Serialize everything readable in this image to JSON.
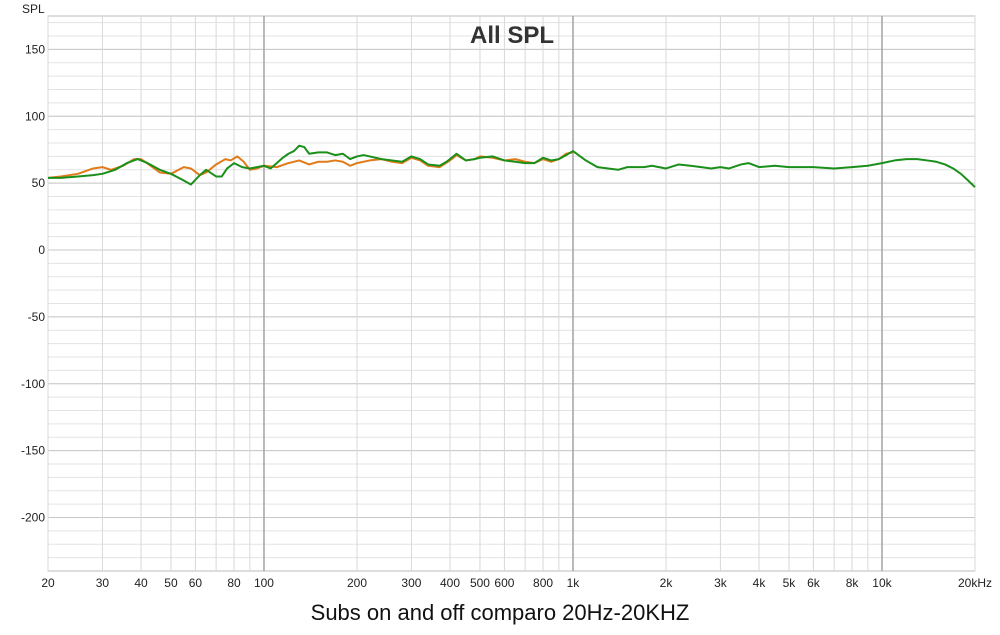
{
  "chart_data": {
    "type": "line",
    "title": "All SPL",
    "ylabel": "SPL",
    "xlabel": "",
    "x_scale": "log",
    "xlim": [
      20,
      20000
    ],
    "ylim": [
      -240,
      175
    ],
    "grid": true,
    "y_ticks": [
      150,
      100,
      50,
      0,
      -50,
      -100,
      -150,
      -200
    ],
    "x_ticks": [
      {
        "value": 20,
        "label": "20"
      },
      {
        "value": 30,
        "label": "30"
      },
      {
        "value": 40,
        "label": "40"
      },
      {
        "value": 50,
        "label": "50"
      },
      {
        "value": 60,
        "label": "60"
      },
      {
        "value": 80,
        "label": "80"
      },
      {
        "value": 100,
        "label": "100"
      },
      {
        "value": 200,
        "label": "200"
      },
      {
        "value": 300,
        "label": "300"
      },
      {
        "value": 400,
        "label": "400"
      },
      {
        "value": 500,
        "label": "500"
      },
      {
        "value": 600,
        "label": "600"
      },
      {
        "value": 800,
        "label": "800"
      },
      {
        "value": 1000,
        "label": "1k"
      },
      {
        "value": 2000,
        "label": "2k"
      },
      {
        "value": 3000,
        "label": "3k"
      },
      {
        "value": 4000,
        "label": "4k"
      },
      {
        "value": 5000,
        "label": "5k"
      },
      {
        "value": 6000,
        "label": "6k"
      },
      {
        "value": 8000,
        "label": "8k"
      },
      {
        "value": 10000,
        "label": "10k"
      },
      {
        "value": 20000,
        "label": "20kHz"
      }
    ],
    "series": [
      {
        "color": "#e07b1a",
        "points": [
          [
            20,
            54
          ],
          [
            22,
            55
          ],
          [
            25,
            57
          ],
          [
            28,
            61
          ],
          [
            30,
            62
          ],
          [
            32,
            60
          ],
          [
            35,
            63
          ],
          [
            38,
            68
          ],
          [
            40,
            68
          ],
          [
            43,
            63
          ],
          [
            46,
            58
          ],
          [
            50,
            57
          ],
          [
            55,
            62
          ],
          [
            58,
            61
          ],
          [
            62,
            56
          ],
          [
            65,
            58
          ],
          [
            70,
            64
          ],
          [
            75,
            68
          ],
          [
            78,
            67
          ],
          [
            82,
            70
          ],
          [
            86,
            66
          ],
          [
            90,
            60
          ],
          [
            95,
            61
          ],
          [
            100,
            63
          ],
          [
            110,
            62
          ],
          [
            120,
            65
          ],
          [
            130,
            67
          ],
          [
            140,
            64
          ],
          [
            150,
            66
          ],
          [
            160,
            66
          ],
          [
            170,
            67
          ],
          [
            180,
            66
          ],
          [
            190,
            63
          ],
          [
            200,
            65
          ],
          [
            220,
            67
          ],
          [
            240,
            68
          ],
          [
            260,
            66
          ],
          [
            280,
            65
          ],
          [
            300,
            69
          ],
          [
            320,
            67
          ],
          [
            340,
            63
          ],
          [
            370,
            62
          ],
          [
            400,
            67
          ],
          [
            420,
            71
          ],
          [
            450,
            67
          ],
          [
            480,
            68
          ],
          [
            500,
            70
          ],
          [
            550,
            69
          ],
          [
            600,
            67
          ],
          [
            650,
            68
          ],
          [
            700,
            66
          ],
          [
            750,
            65
          ],
          [
            800,
            68
          ],
          [
            850,
            66
          ],
          [
            900,
            68
          ],
          [
            950,
            72
          ],
          [
            1000,
            73
          ]
        ]
      },
      {
        "color": "#1a8f1a",
        "points": [
          [
            20,
            54
          ],
          [
            22,
            54
          ],
          [
            25,
            55
          ],
          [
            28,
            56
          ],
          [
            30,
            57
          ],
          [
            33,
            60
          ],
          [
            36,
            65
          ],
          [
            39,
            68
          ],
          [
            42,
            65
          ],
          [
            46,
            60
          ],
          [
            50,
            57
          ],
          [
            55,
            52
          ],
          [
            58,
            49
          ],
          [
            62,
            56
          ],
          [
            65,
            60
          ],
          [
            70,
            55
          ],
          [
            73,
            55
          ],
          [
            76,
            61
          ],
          [
            80,
            65
          ],
          [
            85,
            62
          ],
          [
            90,
            61
          ],
          [
            95,
            62
          ],
          [
            100,
            63
          ],
          [
            105,
            61
          ],
          [
            110,
            65
          ],
          [
            115,
            69
          ],
          [
            120,
            72
          ],
          [
            125,
            74
          ],
          [
            130,
            78
          ],
          [
            135,
            77
          ],
          [
            140,
            72
          ],
          [
            150,
            73
          ],
          [
            160,
            73
          ],
          [
            170,
            71
          ],
          [
            180,
            72
          ],
          [
            190,
            68
          ],
          [
            200,
            70
          ],
          [
            210,
            71
          ],
          [
            220,
            70
          ],
          [
            240,
            68
          ],
          [
            260,
            67
          ],
          [
            280,
            66
          ],
          [
            300,
            70
          ],
          [
            320,
            68
          ],
          [
            340,
            64
          ],
          [
            370,
            63
          ],
          [
            390,
            66
          ],
          [
            420,
            72
          ],
          [
            450,
            67
          ],
          [
            480,
            68
          ],
          [
            500,
            69
          ],
          [
            550,
            70
          ],
          [
            600,
            67
          ],
          [
            650,
            66
          ],
          [
            700,
            65
          ],
          [
            750,
            65
          ],
          [
            800,
            69
          ],
          [
            850,
            67
          ],
          [
            900,
            68
          ],
          [
            950,
            71
          ],
          [
            1000,
            74
          ],
          [
            1100,
            67
          ],
          [
            1200,
            62
          ],
          [
            1300,
            61
          ],
          [
            1400,
            60
          ],
          [
            1500,
            62
          ],
          [
            1600,
            62
          ],
          [
            1700,
            62
          ],
          [
            1800,
            63
          ],
          [
            2000,
            61
          ],
          [
            2200,
            64
          ],
          [
            2400,
            63
          ],
          [
            2600,
            62
          ],
          [
            2800,
            61
          ],
          [
            3000,
            62
          ],
          [
            3200,
            61
          ],
          [
            3500,
            64
          ],
          [
            3700,
            65
          ],
          [
            4000,
            62
          ],
          [
            4500,
            63
          ],
          [
            5000,
            62
          ],
          [
            5500,
            62
          ],
          [
            6000,
            62
          ],
          [
            7000,
            61
          ],
          [
            8000,
            62
          ],
          [
            9000,
            63
          ],
          [
            10000,
            65
          ],
          [
            11000,
            67
          ],
          [
            12000,
            68
          ],
          [
            13000,
            68
          ],
          [
            14000,
            67
          ],
          [
            15000,
            66
          ],
          [
            16000,
            64
          ],
          [
            17000,
            61
          ],
          [
            18000,
            57
          ],
          [
            19000,
            52
          ],
          [
            20000,
            47
          ]
        ]
      }
    ]
  },
  "caption": "Subs on and off comparo 20Hz-20KHZ"
}
